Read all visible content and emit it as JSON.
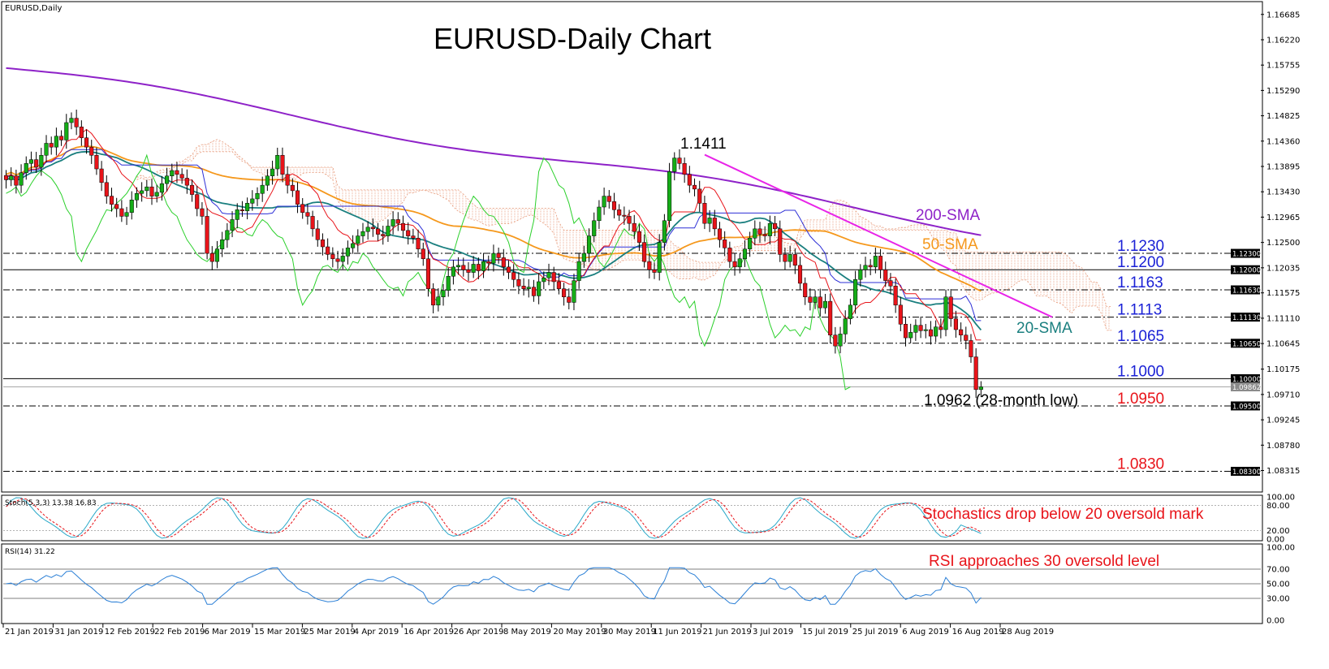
{
  "chart_data": {
    "type": "candlestick",
    "symbol_label": "EURUSD,Daily",
    "title": "EURUSD-Daily Chart",
    "timeframe": "Daily",
    "price_axis": {
      "ylim": [
        1.0795,
        1.1689
      ],
      "ticks": [
        "1.16685",
        "1.16220",
        "1.15755",
        "1.15290",
        "1.14825",
        "1.14360",
        "1.13895",
        "1.13430",
        "1.12965",
        "1.12500",
        "1.12035",
        "1.11575",
        "1.11110",
        "1.10645",
        "1.10175",
        "1.09710",
        "1.09245",
        "1.08780",
        "1.08315"
      ]
    },
    "x_axis": {
      "ticks": [
        "21 Jan 2019",
        "31 Jan 2019",
        "12 Feb 2019",
        "22 Feb 2019",
        "6 Mar 2019",
        "15 Mar 2019",
        "25 Mar 2019",
        "4 Apr 2019",
        "16 Apr 2019",
        "26 Apr 2019",
        "8 May 2019",
        "20 May 2019",
        "30 May 2019",
        "11 Jun 2019",
        "21 Jun 2019",
        "3 Jul 2019",
        "15 Jul 2019",
        "25 Jul 2019",
        "6 Aug 2019",
        "16 Aug 2019",
        "28 Aug 2019"
      ]
    },
    "closes": [
      1.1365,
      1.1372,
      1.1355,
      1.1378,
      1.1395,
      1.1402,
      1.1388,
      1.141,
      1.1432,
      1.1425,
      1.1445,
      1.1438,
      1.147,
      1.1478,
      1.1462,
      1.1442,
      1.1425,
      1.141,
      1.1385,
      1.136,
      1.1335,
      1.132,
      1.1312,
      1.1298,
      1.1305,
      1.1328,
      1.134,
      1.1345,
      1.1352,
      1.1335,
      1.1342,
      1.1358,
      1.1372,
      1.1382,
      1.1375,
      1.1368,
      1.1355,
      1.1338,
      1.1312,
      1.1298,
      1.123,
      1.1215,
      1.1238,
      1.1255,
      1.1272,
      1.1292,
      1.131,
      1.1308,
      1.1322,
      1.133,
      1.134,
      1.1355,
      1.1372,
      1.1385,
      1.141,
      1.1375,
      1.1355,
      1.1345,
      1.132,
      1.1305,
      1.1298,
      1.1275,
      1.1255,
      1.1242,
      1.1228,
      1.122,
      1.1215,
      1.1225,
      1.124,
      1.1248,
      1.1262,
      1.127,
      1.1278,
      1.1275,
      1.1265,
      1.1262,
      1.128,
      1.1292,
      1.1285,
      1.1272,
      1.1262,
      1.1258,
      1.1238,
      1.122,
      1.1165,
      1.1135,
      1.115,
      1.1162,
      1.1188,
      1.1205,
      1.1208,
      1.12,
      1.1195,
      1.121,
      1.1198,
      1.1215,
      1.1212,
      1.123,
      1.1222,
      1.1205,
      1.1195,
      1.1182,
      1.117,
      1.1165,
      1.1168,
      1.1152,
      1.1178,
      1.1185,
      1.1195,
      1.1178,
      1.1165,
      1.115,
      1.114,
      1.118,
      1.1215,
      1.123,
      1.1262,
      1.129,
      1.1315,
      1.1335,
      1.1325,
      1.131,
      1.13,
      1.1298,
      1.1285,
      1.127,
      1.125,
      1.1215,
      1.12,
      1.1195,
      1.125,
      1.129,
      1.138,
      1.1405,
      1.1395,
      1.1375,
      1.1355,
      1.1348,
      1.1322,
      1.1285,
      1.1295,
      1.1275,
      1.1255,
      1.124,
      1.1215,
      1.1205,
      1.122,
      1.1238,
      1.1258,
      1.1275,
      1.1265,
      1.1262,
      1.1285,
      1.1275,
      1.1228,
      1.1215,
      1.1228,
      1.1208,
      1.1175,
      1.115,
      1.114,
      1.115,
      1.113,
      1.1142,
      1.108,
      1.106,
      1.1082,
      1.111,
      1.1135,
      1.1182,
      1.12,
      1.1208,
      1.1205,
      1.1225,
      1.12,
      1.118,
      1.117,
      1.1135,
      1.11,
      1.1075,
      1.1085,
      1.1098,
      1.1088,
      1.109,
      1.1078,
      1.1095,
      1.109,
      1.115,
      1.111,
      1.109,
      1.108,
      1.107,
      1.104,
      1.098,
      1.0985
    ],
    "price_levels": [
      {
        "label": "1.1230",
        "tag": "1.12300",
        "value": 1.123,
        "color": "#1b22d6"
      },
      {
        "label": "1.1200",
        "tag": "1.12000",
        "value": 1.12,
        "color": "#1b22d6"
      },
      {
        "label": "1.1163",
        "tag": "1.11630",
        "value": 1.1163,
        "color": "#1b22d6"
      },
      {
        "label": "1.1113",
        "tag": "1.11130",
        "value": 1.1113,
        "color": "#1b22d6"
      },
      {
        "label": "1.1065",
        "tag": "1.10650",
        "value": 1.1065,
        "color": "#1b22d6"
      },
      {
        "label": "1.1000",
        "tag": "1.10000",
        "value": 1.1,
        "color": "#1b22d6"
      },
      {
        "label": "1.0950",
        "tag": "1.09500",
        "value": 1.095,
        "color": "#e8141a"
      },
      {
        "label": "1.0830",
        "tag": "1.08300",
        "value": 1.083,
        "color": "#e8141a"
      }
    ],
    "current_price_tag": "1.09862",
    "annotations": {
      "high_label": "1.1411",
      "low_label": "1.0962 (28-month low)",
      "sma200_label": "200-SMA",
      "sma50_label": "50-SMA",
      "sma20_label": "20-SMA"
    },
    "colors": {
      "bull": "#15ad17",
      "bear": "#e8141a",
      "sma200": "#8e22c8",
      "sma50": "#f5981c",
      "sma20": "#1a7f7f",
      "kijun": "#2d2fd6",
      "tenkan": "#e8141a",
      "chikou": "#2bd02b",
      "cloud": "#e79a7a",
      "trendline": "#e824e8",
      "stoch_k": "#28a8c8",
      "stoch_d": "#e8141a",
      "rsi": "#2a7fd6"
    },
    "stochastic": {
      "label": "Stoch(5,3,3) 13.38 16.83",
      "k": 13.38,
      "d": 16.83,
      "ticks": [
        "100.00",
        "80.00",
        "20.00",
        "0.00"
      ],
      "annotation": "Stochastics drop below 20 oversold mark"
    },
    "rsi": {
      "label": "RSI(14) 31.22",
      "value": 31.22,
      "ticks": [
        "100.00",
        "70.00",
        "50.00",
        "30.00",
        "0.00"
      ],
      "annotation": "RSI approaches 30 oversold level"
    }
  }
}
